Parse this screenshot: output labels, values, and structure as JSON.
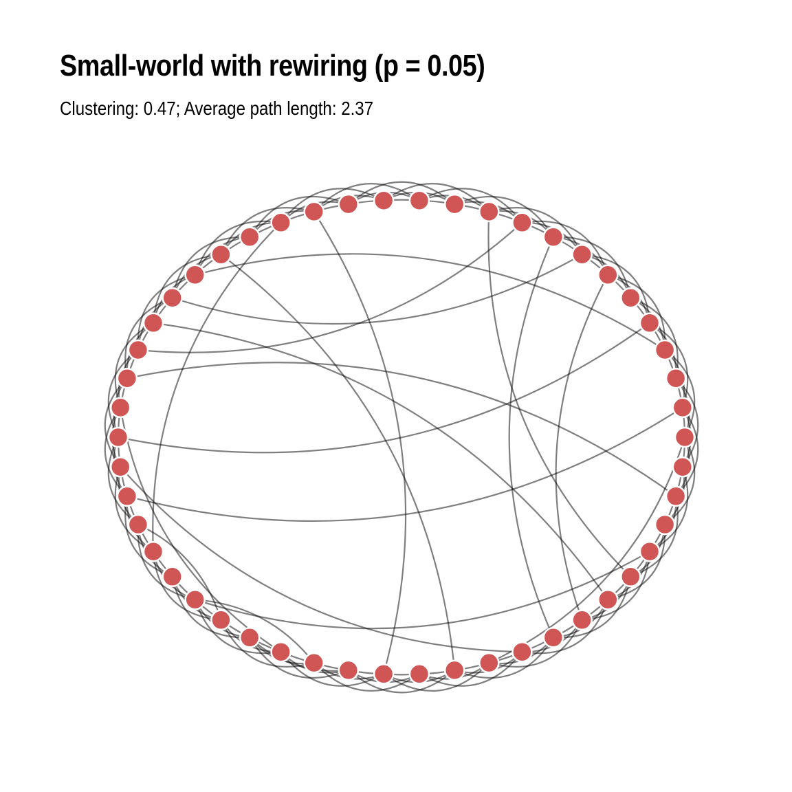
{
  "header": {
    "title": "Small-world with rewiring (p = 0.05)",
    "subtitle": "Clustering: 0.47; Average path length: 2.37"
  },
  "colors": {
    "background": "#ffffff",
    "node_fill": "#d05555",
    "node_stroke": "#ffffff",
    "edge_stroke": "#000000"
  },
  "diagram": {
    "layout": "circle",
    "node_count": 50,
    "ring_neighbors_each_side": 3,
    "rewired_edges": [
      [
        2,
        17
      ],
      [
        3,
        40
      ],
      [
        4,
        20
      ],
      [
        5,
        42
      ],
      [
        6,
        19
      ],
      [
        8,
        37
      ],
      [
        9,
        43
      ],
      [
        12,
        22
      ],
      [
        14,
        39
      ],
      [
        16,
        31
      ],
      [
        23,
        44
      ],
      [
        21,
        36
      ],
      [
        25,
        47
      ],
      [
        26,
        29
      ],
      [
        27,
        31
      ],
      [
        28,
        38
      ],
      [
        30,
        34
      ],
      [
        33,
        46
      ],
      [
        35,
        11
      ],
      [
        41,
        18
      ]
    ]
  }
}
